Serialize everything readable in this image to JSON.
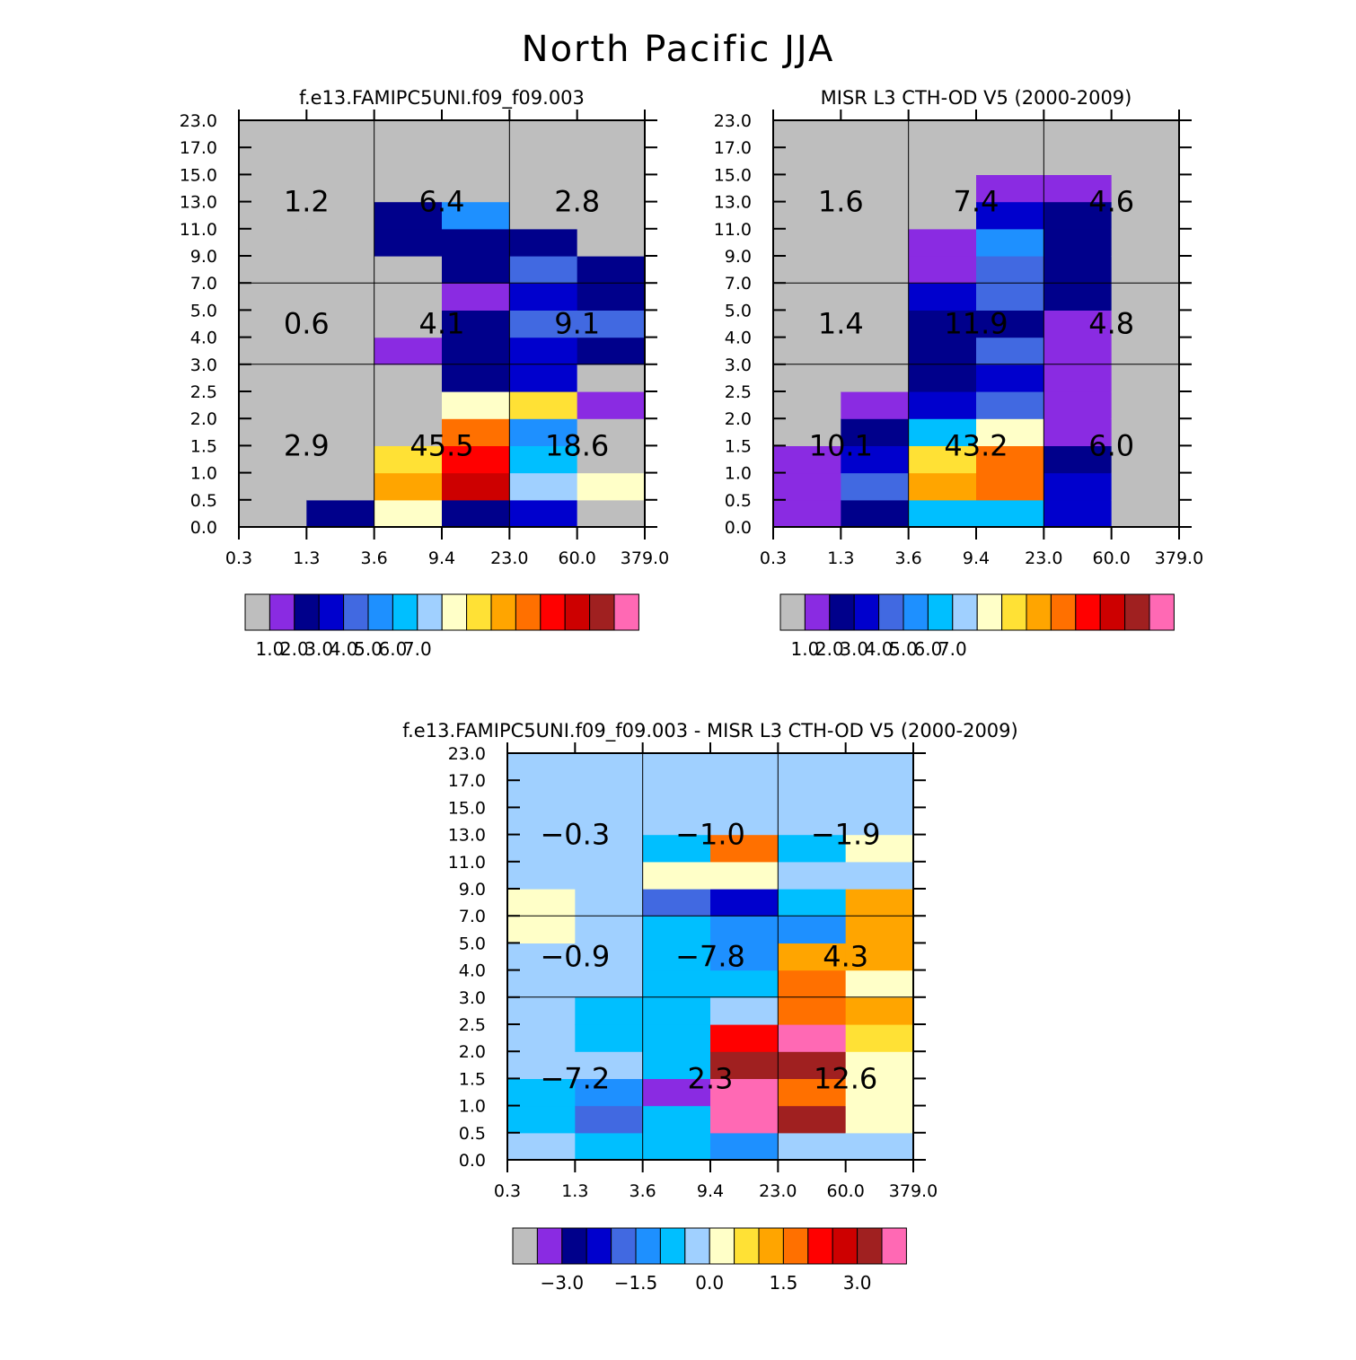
{
  "page_title": "North Pacific JJA",
  "chart_data": [
    {
      "type": "heatmap",
      "title": "f.e13.FAMIPC5UNI.f09_f09.003",
      "x_tick_labels": [
        "0.3",
        "1.3",
        "3.6",
        "9.4",
        "23.0",
        "60.0",
        "379.0"
      ],
      "y_tick_labels": [
        "0.0",
        "0.5",
        "1.0",
        "1.5",
        "2.0",
        "2.5",
        "3.0",
        "4.0",
        "5.0",
        "7.0",
        "9.0",
        "11.0",
        "13.0",
        "15.0",
        "17.0",
        "23.0"
      ],
      "cells": [
        [
          0,
          0,
          0,
          0,
          0,
          0,
          0,
          0,
          0,
          0,
          0,
          0,
          0,
          0,
          0
        ],
        [
          2,
          0,
          0,
          0,
          0,
          0,
          0,
          0,
          0,
          0,
          0,
          0,
          0,
          0,
          0
        ],
        [
          8,
          10,
          9,
          0,
          0,
          0,
          1,
          0,
          0,
          0,
          2,
          2,
          0,
          0,
          0
        ],
        [
          2,
          13,
          12,
          11,
          8,
          2,
          2,
          2,
          1,
          2,
          2,
          5,
          0,
          0,
          0
        ],
        [
          3,
          7,
          6,
          5,
          9,
          3,
          3,
          4,
          3,
          4,
          2,
          0,
          0,
          0,
          0
        ],
        [
          0,
          8,
          0,
          0,
          1,
          0,
          2,
          4,
          2,
          2,
          0,
          0,
          0,
          0,
          0
        ]
      ],
      "block_values": [
        [
          "2.9",
          "0.6",
          "1.2"
        ],
        [
          "45.5",
          "4.1",
          "6.4"
        ],
        [
          "18.6",
          "9.1",
          "2.8"
        ]
      ],
      "colorbar_labels": [
        "1.0",
        "2.0",
        "3.0",
        "4.0",
        "5.0",
        "6.0",
        "7.0"
      ]
    },
    {
      "type": "heatmap",
      "title": "MISR L3 CTH-OD V5 (2000-2009)",
      "x_tick_labels": [
        "0.3",
        "1.3",
        "3.6",
        "9.4",
        "23.0",
        "60.0",
        "379.0"
      ],
      "y_tick_labels": [
        "0.0",
        "0.5",
        "1.0",
        "1.5",
        "2.0",
        "2.5",
        "3.0",
        "4.0",
        "5.0",
        "7.0",
        "9.0",
        "11.0",
        "13.0",
        "15.0",
        "17.0",
        "23.0"
      ],
      "cells": [
        [
          1,
          1,
          1,
          0,
          0,
          0,
          0,
          0,
          0,
          0,
          0,
          0,
          0,
          0,
          0
        ],
        [
          2,
          4,
          3,
          2,
          1,
          0,
          0,
          0,
          0,
          0,
          0,
          0,
          0,
          0,
          0
        ],
        [
          6,
          10,
          9,
          6,
          3,
          2,
          2,
          2,
          3,
          1,
          1,
          0,
          0,
          0,
          0
        ],
        [
          6,
          11,
          11,
          8,
          4,
          3,
          4,
          2,
          4,
          4,
          5,
          3,
          1,
          0,
          0
        ],
        [
          3,
          3,
          2,
          1,
          1,
          1,
          1,
          1,
          2,
          2,
          2,
          2,
          1,
          0,
          0
        ],
        [
          0,
          0,
          0,
          0,
          0,
          0,
          0,
          0,
          0,
          0,
          0,
          0,
          0,
          0,
          0
        ]
      ],
      "block_values": [
        [
          "10.1",
          "1.4",
          "1.6"
        ],
        [
          "43.2",
          "11.9",
          "7.4"
        ],
        [
          "6.0",
          "4.8",
          "4.6"
        ]
      ],
      "colorbar_labels": [
        "1.0",
        "2.0",
        "3.0",
        "4.0",
        "5.0",
        "6.0",
        "7.0"
      ]
    },
    {
      "type": "heatmap",
      "title": "f.e13.FAMIPC5UNI.f09_f09.003 - MISR L3 CTH-OD V5 (2000-2009)",
      "x_tick_labels": [
        "0.3",
        "1.3",
        "3.6",
        "9.4",
        "23.0",
        "60.0",
        "379.0"
      ],
      "y_tick_labels": [
        "0.0",
        "0.5",
        "1.0",
        "1.5",
        "2.0",
        "2.5",
        "3.0",
        "4.0",
        "5.0",
        "7.0",
        "9.0",
        "11.0",
        "13.0",
        "15.0",
        "17.0",
        "23.0"
      ],
      "cells": [
        [
          7,
          6,
          6,
          7,
          7,
          7,
          7,
          7,
          8,
          8,
          7,
          7,
          7,
          7,
          7
        ],
        [
          6,
          4,
          5,
          7,
          6,
          6,
          7,
          7,
          7,
          7,
          7,
          7,
          7,
          7,
          7
        ],
        [
          6,
          6,
          1,
          6,
          6,
          6,
          6,
          6,
          6,
          4,
          8,
          6,
          7,
          7,
          7
        ],
        [
          5,
          15,
          15,
          14,
          12,
          7,
          6,
          5,
          5,
          3,
          8,
          11,
          7,
          7,
          7
        ],
        [
          7,
          14,
          11,
          14,
          15,
          11,
          11,
          10,
          5,
          6,
          7,
          6,
          7,
          7,
          7
        ],
        [
          7,
          8,
          8,
          8,
          9,
          10,
          8,
          10,
          10,
          10,
          7,
          8,
          7,
          7,
          7
        ]
      ],
      "block_values": [
        [
          "-7.2",
          "-0.9",
          "-0.3"
        ],
        [
          "2.3",
          "-7.8",
          "-1.0"
        ],
        [
          "12.6",
          "4.3",
          "-1.9"
        ]
      ],
      "colorbar_labels": [
        "-3.0",
        "-1.5",
        "0.0",
        "1.5",
        "3.0"
      ]
    }
  ],
  "colors": [
    "#bebebe",
    "#8a2be2",
    "#00008b",
    "#0000cd",
    "#4169e1",
    "#1e90ff",
    "#00bfff",
    "#a0d0ff",
    "#ffffc8",
    "#ffe135",
    "#ffa500",
    "#ff7000",
    "#ff0000",
    "#cd0000",
    "#a02020",
    "#ff69b4"
  ]
}
